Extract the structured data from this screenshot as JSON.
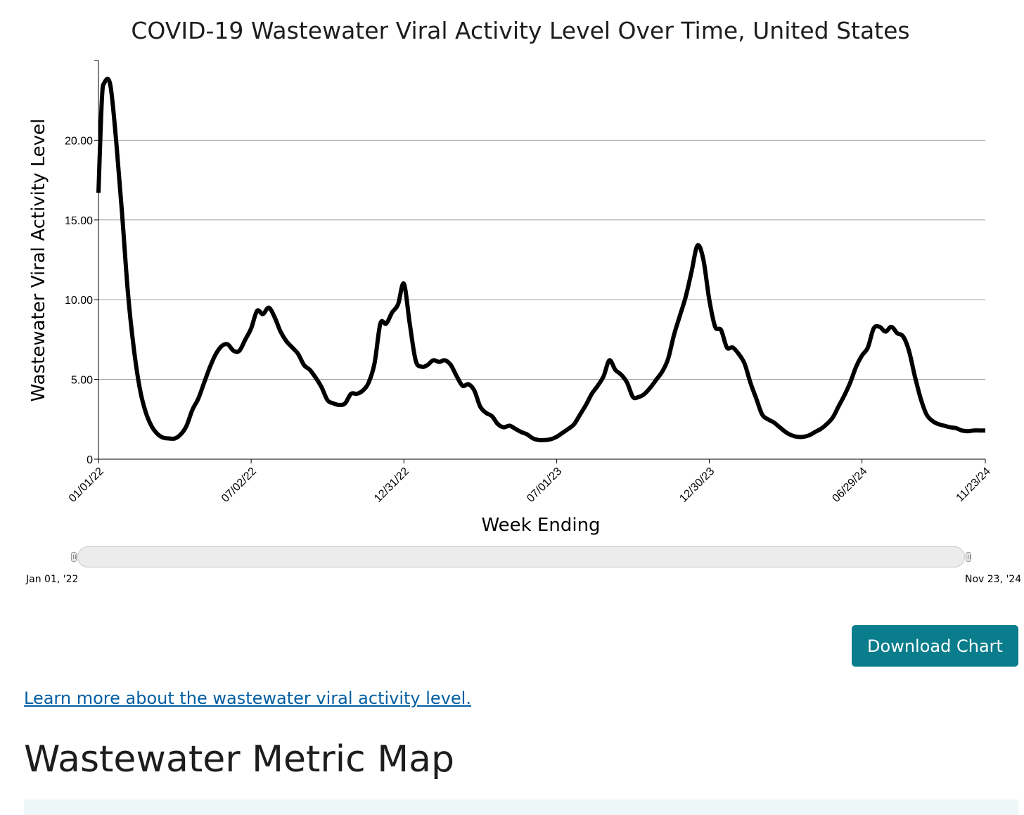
{
  "chart_data": {
    "type": "line",
    "title": "COVID-19 Wastewater Viral Activity Level Over Time, United States",
    "xlabel": "Week Ending",
    "ylabel": "Wastewater Viral Activity Level",
    "x_range": [
      "2022-01-01",
      "2024-11-23"
    ],
    "ylim": [
      0,
      25
    ],
    "y_ticks": [
      "0",
      "5.00",
      "10.00",
      "15.00",
      "20.00"
    ],
    "x_ticks": [
      {
        "date": "2022-01-01",
        "label": "01/01/22"
      },
      {
        "date": "2022-07-02",
        "label": "07/02/22"
      },
      {
        "date": "2022-12-31",
        "label": "12/31/22"
      },
      {
        "date": "2023-07-01",
        "label": "07/01/23"
      },
      {
        "date": "2023-12-30",
        "label": "12/30/23"
      },
      {
        "date": "2024-06-29",
        "label": "06/29/24"
      },
      {
        "date": "2024-11-23",
        "label": "11/23/24"
      }
    ],
    "grid": true,
    "line_color": "#000000",
    "series": [
      {
        "points": [
          [
            "2022-01-01",
            16.7
          ],
          [
            "2022-01-05",
            22.5
          ],
          [
            "2022-01-08",
            23.6
          ],
          [
            "2022-01-15",
            23.5
          ],
          [
            "2022-01-22",
            20
          ],
          [
            "2022-01-29",
            15.5
          ],
          [
            "2022-02-05",
            10.5
          ],
          [
            "2022-02-12",
            7
          ],
          [
            "2022-02-19",
            4.5
          ],
          [
            "2022-02-26",
            3
          ],
          [
            "2022-03-05",
            2.1
          ],
          [
            "2022-03-12",
            1.6
          ],
          [
            "2022-03-19",
            1.35
          ],
          [
            "2022-03-26",
            1.3
          ],
          [
            "2022-04-02",
            1.3
          ],
          [
            "2022-04-09",
            1.55
          ],
          [
            "2022-04-16",
            2.1
          ],
          [
            "2022-04-23",
            3.1
          ],
          [
            "2022-04-30",
            3.8
          ],
          [
            "2022-05-07",
            4.8
          ],
          [
            "2022-05-14",
            5.8
          ],
          [
            "2022-05-21",
            6.6
          ],
          [
            "2022-05-28",
            7.1
          ],
          [
            "2022-06-04",
            7.2
          ],
          [
            "2022-06-11",
            6.8
          ],
          [
            "2022-06-18",
            6.8
          ],
          [
            "2022-06-25",
            7.5
          ],
          [
            "2022-07-02",
            8.2
          ],
          [
            "2022-07-09",
            9.3
          ],
          [
            "2022-07-16",
            9.1
          ],
          [
            "2022-07-23",
            9.5
          ],
          [
            "2022-07-30",
            8.9
          ],
          [
            "2022-08-06",
            8
          ],
          [
            "2022-08-13",
            7.4
          ],
          [
            "2022-08-20",
            7
          ],
          [
            "2022-08-27",
            6.6
          ],
          [
            "2022-09-03",
            5.9
          ],
          [
            "2022-09-10",
            5.6
          ],
          [
            "2022-09-17",
            5.1
          ],
          [
            "2022-09-24",
            4.5
          ],
          [
            "2022-10-01",
            3.7
          ],
          [
            "2022-10-08",
            3.5
          ],
          [
            "2022-10-15",
            3.4
          ],
          [
            "2022-10-22",
            3.5
          ],
          [
            "2022-10-29",
            4.1
          ],
          [
            "2022-11-05",
            4.1
          ],
          [
            "2022-11-12",
            4.3
          ],
          [
            "2022-11-19",
            4.8
          ],
          [
            "2022-11-26",
            6
          ],
          [
            "2022-12-03",
            8.5
          ],
          [
            "2022-12-10",
            8.5
          ],
          [
            "2022-12-17",
            9.2
          ],
          [
            "2022-12-24",
            9.7
          ],
          [
            "2022-12-31",
            11
          ],
          [
            "2023-01-07",
            8.5
          ],
          [
            "2023-01-14",
            6.2
          ],
          [
            "2023-01-21",
            5.8
          ],
          [
            "2023-01-28",
            5.9
          ],
          [
            "2023-02-04",
            6.2
          ],
          [
            "2023-02-11",
            6.1
          ],
          [
            "2023-02-18",
            6.2
          ],
          [
            "2023-02-25",
            5.9
          ],
          [
            "2023-03-04",
            5.2
          ],
          [
            "2023-03-11",
            4.6
          ],
          [
            "2023-03-18",
            4.7
          ],
          [
            "2023-03-25",
            4.3
          ],
          [
            "2023-04-01",
            3.3
          ],
          [
            "2023-04-08",
            2.9
          ],
          [
            "2023-04-15",
            2.7
          ],
          [
            "2023-04-22",
            2.2
          ],
          [
            "2023-04-29",
            2
          ],
          [
            "2023-05-06",
            2.1
          ],
          [
            "2023-05-13",
            1.9
          ],
          [
            "2023-05-20",
            1.7
          ],
          [
            "2023-05-27",
            1.55
          ],
          [
            "2023-06-03",
            1.3
          ],
          [
            "2023-06-10",
            1.2
          ],
          [
            "2023-06-17",
            1.2
          ],
          [
            "2023-06-24",
            1.25
          ],
          [
            "2023-07-01",
            1.4
          ],
          [
            "2023-07-08",
            1.65
          ],
          [
            "2023-07-15",
            1.9
          ],
          [
            "2023-07-22",
            2.2
          ],
          [
            "2023-07-29",
            2.8
          ],
          [
            "2023-08-05",
            3.4
          ],
          [
            "2023-08-12",
            4.1
          ],
          [
            "2023-08-19",
            4.6
          ],
          [
            "2023-08-26",
            5.2
          ],
          [
            "2023-09-02",
            6.2
          ],
          [
            "2023-09-09",
            5.6
          ],
          [
            "2023-09-16",
            5.3
          ],
          [
            "2023-09-23",
            4.8
          ],
          [
            "2023-09-30",
            3.9
          ],
          [
            "2023-10-07",
            3.9
          ],
          [
            "2023-10-14",
            4.1
          ],
          [
            "2023-10-21",
            4.5
          ],
          [
            "2023-10-28",
            5
          ],
          [
            "2023-11-04",
            5.5
          ],
          [
            "2023-11-11",
            6.3
          ],
          [
            "2023-11-18",
            7.8
          ],
          [
            "2023-11-25",
            9
          ],
          [
            "2023-12-02",
            10.2
          ],
          [
            "2023-12-09",
            11.8
          ],
          [
            "2023-12-16",
            13.4
          ],
          [
            "2023-12-23",
            12.5
          ],
          [
            "2023-12-30",
            10
          ],
          [
            "2024-01-06",
            8.3
          ],
          [
            "2024-01-13",
            8.1
          ],
          [
            "2024-01-20",
            7
          ],
          [
            "2024-01-27",
            7
          ],
          [
            "2024-02-03",
            6.6
          ],
          [
            "2024-02-10",
            6
          ],
          [
            "2024-02-17",
            4.8
          ],
          [
            "2024-02-24",
            3.8
          ],
          [
            "2024-03-02",
            2.8
          ],
          [
            "2024-03-09",
            2.5
          ],
          [
            "2024-03-16",
            2.3
          ],
          [
            "2024-03-23",
            2
          ],
          [
            "2024-03-30",
            1.7
          ],
          [
            "2024-04-06",
            1.5
          ],
          [
            "2024-04-13",
            1.4
          ],
          [
            "2024-04-20",
            1.4
          ],
          [
            "2024-04-27",
            1.5
          ],
          [
            "2024-05-04",
            1.7
          ],
          [
            "2024-05-11",
            1.9
          ],
          [
            "2024-05-18",
            2.2
          ],
          [
            "2024-05-25",
            2.6
          ],
          [
            "2024-06-01",
            3.3
          ],
          [
            "2024-06-08",
            4
          ],
          [
            "2024-06-15",
            4.8
          ],
          [
            "2024-06-22",
            5.8
          ],
          [
            "2024-06-29",
            6.5
          ],
          [
            "2024-07-06",
            7
          ],
          [
            "2024-07-13",
            8.2
          ],
          [
            "2024-07-20",
            8.3
          ],
          [
            "2024-07-27",
            8
          ],
          [
            "2024-08-03",
            8.3
          ],
          [
            "2024-08-10",
            7.9
          ],
          [
            "2024-08-17",
            7.7
          ],
          [
            "2024-08-24",
            6.8
          ],
          [
            "2024-08-31",
            5.2
          ],
          [
            "2024-09-07",
            3.8
          ],
          [
            "2024-09-14",
            2.8
          ],
          [
            "2024-09-21",
            2.4
          ],
          [
            "2024-09-28",
            2.2
          ],
          [
            "2024-10-05",
            2.1
          ],
          [
            "2024-10-12",
            2
          ],
          [
            "2024-10-19",
            1.95
          ],
          [
            "2024-10-26",
            1.8
          ],
          [
            "2024-11-02",
            1.75
          ],
          [
            "2024-11-09",
            1.8
          ],
          [
            "2024-11-16",
            1.8
          ],
          [
            "2024-11-23",
            1.8
          ]
        ]
      }
    ]
  },
  "range_slider": {
    "start_label": "Jan 01, '22",
    "end_label": "Nov 23, '24"
  },
  "download": {
    "label": "Download Chart"
  },
  "learn_more": {
    "label": "Learn more about the wastewater viral activity level."
  },
  "map_section": {
    "heading": "Wastewater Metric Map"
  }
}
